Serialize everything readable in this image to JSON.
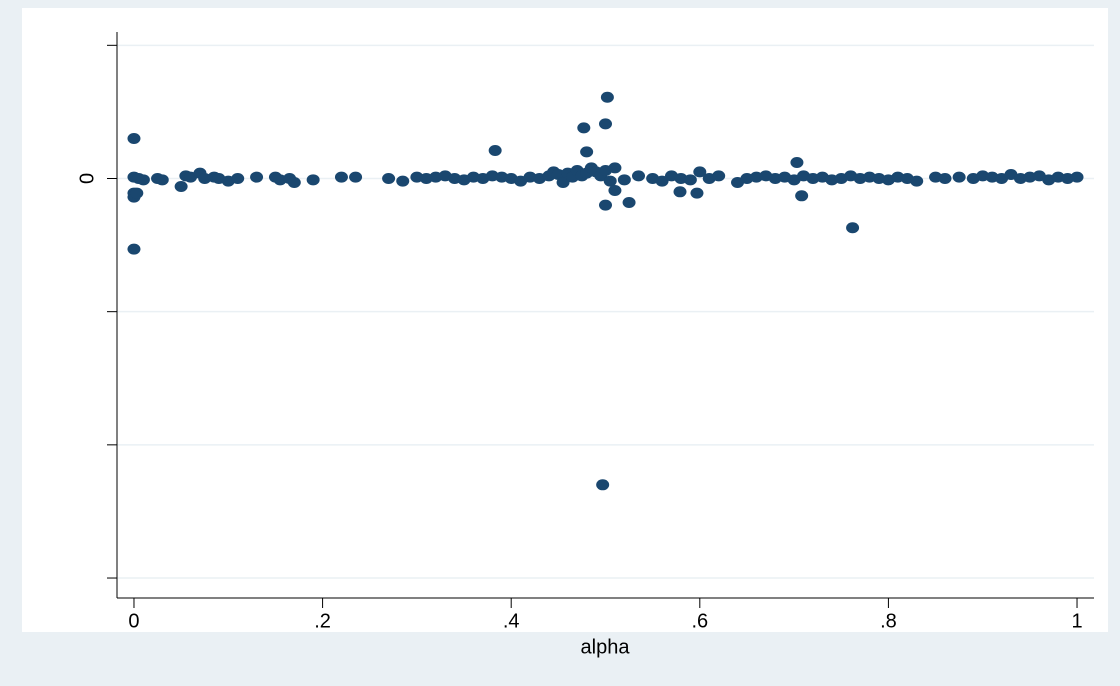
{
  "chart_data": {
    "type": "scatter",
    "x_label": "alpha",
    "color": "#1a476f",
    "grid": true,
    "xlim": [
      -0.018,
      1.018
    ],
    "ylim": [
      -3.15,
      1.1
    ],
    "xticks": [
      0,
      {
        "value": 0.2,
        "label": ".2"
      },
      {
        "value": 0.4,
        "label": ".4"
      },
      {
        "value": 0.6,
        "label": ".6"
      },
      {
        "value": 0.8,
        "label": ".8"
      },
      1
    ],
    "yticks": [
      {
        "value": -3,
        "label": null
      },
      {
        "value": -2,
        "label": null
      },
      {
        "value": -1,
        "label": null
      },
      0,
      {
        "value": 1,
        "label": null
      }
    ],
    "x": [
      0,
      0,
      0,
      0.003,
      0,
      0.502,
      0.5,
      0.477,
      0.48,
      0.383,
      0.703,
      0.5,
      0.525,
      0.708,
      0.762,
      0.497,
      0.579,
      0.597,
      0.51,
      0.05,
      0,
      0.005,
      0.01,
      0.025,
      0.03,
      0.055,
      0.06,
      0.07,
      0.075,
      0.085,
      0.09,
      0.1,
      0.11,
      0.13,
      0.15,
      0.155,
      0.165,
      0.17,
      0.19,
      0.22,
      0.235,
      0.27,
      0.285,
      0.3,
      0.31,
      0.32,
      0.33,
      0.34,
      0.35,
      0.36,
      0.37,
      0.38,
      0.39,
      0.4,
      0.41,
      0.42,
      0.43,
      0.44,
      0.445,
      0.45,
      0.455,
      0.46,
      0.465,
      0.47,
      0.475,
      0.48,
      0.485,
      0.49,
      0.495,
      0.5,
      0.505,
      0.51,
      0.52,
      0.535,
      0.55,
      0.56,
      0.57,
      0.58,
      0.59,
      0.6,
      0.61,
      0.62,
      0.64,
      0.65,
      0.66,
      0.67,
      0.68,
      0.69,
      0.7,
      0.71,
      0.72,
      0.73,
      0.74,
      0.75,
      0.76,
      0.77,
      0.78,
      0.79,
      0.8,
      0.81,
      0.82,
      0.83,
      0.85,
      0.86,
      0.875,
      0.89,
      0.9,
      0.91,
      0.92,
      0.93,
      0.94,
      0.95,
      0.96,
      0.97,
      0.98,
      0.99,
      1
    ],
    "y": [
      0.3,
      -0.14,
      -0.11,
      -0.11,
      -0.53,
      0.61,
      0.41,
      0.38,
      0.2,
      0.21,
      0.12,
      -0.2,
      -0.18,
      -0.13,
      -0.37,
      -2.3,
      -0.1,
      -0.11,
      -0.09,
      -0.06,
      0.01,
      0,
      -0.01,
      0,
      -0.01,
      0.02,
      0.01,
      0.04,
      0,
      0.01,
      0,
      -0.02,
      0,
      0.01,
      0.01,
      -0.01,
      0,
      -0.03,
      -0.01,
      0.01,
      0.01,
      0,
      -0.02,
      0.01,
      0,
      0.01,
      0.02,
      0,
      -0.01,
      0.01,
      0,
      0.02,
      0.01,
      0,
      -0.02,
      0.01,
      0,
      0.02,
      0.05,
      0.03,
      -0.03,
      0.04,
      0.01,
      0.06,
      0.02,
      0.04,
      0.08,
      0.05,
      0.02,
      0.06,
      -0.02,
      0.08,
      -0.01,
      0.02,
      0,
      -0.02,
      0.02,
      0,
      -0.01,
      0.05,
      0,
      0.02,
      -0.03,
      0,
      0.01,
      0.02,
      0,
      0.01,
      -0.01,
      0.02,
      0,
      0.01,
      -0.01,
      0,
      0.02,
      0,
      0.01,
      0,
      -0.01,
      0.01,
      0,
      -0.02,
      0.01,
      0,
      0.01,
      0,
      0.02,
      0.01,
      0,
      0.03,
      0,
      0.01,
      0.02,
      -0.01,
      0.01,
      0,
      0.01
    ]
  }
}
